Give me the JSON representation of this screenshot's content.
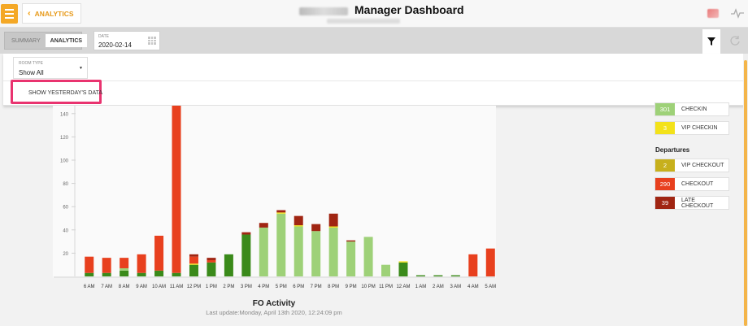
{
  "header": {
    "nav_label": "ANALYTICS",
    "title": "Manager Dashboard"
  },
  "toolbar": {
    "view_options": [
      "SUMMARY",
      "ANALYTICS"
    ],
    "active_view": "ANALYTICS",
    "date_label": "DATE",
    "date_value": "2020-02-14"
  },
  "filters": {
    "room_type_label": "ROOM TYPE",
    "room_type_value": "Show All",
    "show_yesterday_label": "SHOW YESTERDAY'S DATA",
    "show_yesterday_checked": false
  },
  "legend": {
    "arrivals": [
      {
        "value": "301",
        "label": "CHECKIN",
        "color": "#9ed178"
      },
      {
        "value": "3",
        "label": "VIP CHECKIN",
        "color": "#f3e21a"
      }
    ],
    "departures_heading": "Departures",
    "departures": [
      {
        "value": "2",
        "label": "VIP CHECKOUT",
        "color": "#c7b01c"
      },
      {
        "value": "290",
        "label": "CHECKOUT",
        "color": "#e8401e"
      },
      {
        "value": "39",
        "label": "LATE CHECKOUT",
        "color": "#a02512"
      }
    ]
  },
  "chart_data": {
    "type": "bar",
    "title": "FO Activity",
    "last_update": "Last update:Monday, April 13th 2020, 12:24:09 pm",
    "ylim": [
      0,
      150
    ],
    "yticks": [
      20,
      40,
      60,
      80,
      100,
      120,
      140
    ],
    "categories": [
      "6 AM",
      "7 AM",
      "8 AM",
      "9 AM",
      "10 AM",
      "11 AM",
      "12 PM",
      "1 PM",
      "2 PM",
      "3 PM",
      "4 PM",
      "5 PM",
      "6 PM",
      "7 PM",
      "8 PM",
      "9 PM",
      "10 PM",
      "11 PM",
      "12 AM",
      "1 AM",
      "2 AM",
      "3 AM",
      "4 AM",
      "5 AM"
    ],
    "colors": {
      "checkin_dark": "#3a8a1a",
      "checkin_light": "#9ed178",
      "vip_checkin": "#f3e21a",
      "checkout": "#e8401e",
      "late_checkout": "#a02512"
    },
    "series": [
      {
        "key": "checkin_dark",
        "values": [
          3,
          3,
          5,
          3,
          5,
          3,
          10,
          12,
          19,
          36,
          0,
          0,
          0,
          0,
          0,
          0,
          0,
          0,
          12,
          1,
          1,
          1,
          0,
          0
        ]
      },
      {
        "key": "checkin_light",
        "values": [
          0,
          0,
          2,
          0,
          0,
          0,
          0,
          0,
          0,
          0,
          42,
          54,
          43,
          39,
          42,
          30,
          34,
          10,
          0,
          0,
          0,
          0,
          0,
          0
        ]
      },
      {
        "key": "vip_checkin",
        "values": [
          0,
          0,
          0,
          0,
          0,
          0,
          1,
          0,
          0,
          0,
          0,
          1,
          1,
          0,
          1,
          0,
          0,
          0,
          1,
          0,
          0,
          0,
          0,
          0
        ]
      },
      {
        "key": "checkout",
        "values": [
          14,
          13,
          9,
          16,
          30,
          147,
          6,
          2,
          0,
          0,
          0,
          0,
          0,
          0,
          0,
          0,
          0,
          0,
          0,
          0,
          0,
          0,
          19,
          24
        ]
      },
      {
        "key": "late_checkout",
        "values": [
          0,
          0,
          0,
          0,
          0,
          0,
          2,
          2,
          0,
          2,
          4,
          2,
          8,
          6,
          11,
          1,
          0,
          0,
          0,
          0,
          0,
          0,
          0,
          0
        ]
      }
    ]
  }
}
